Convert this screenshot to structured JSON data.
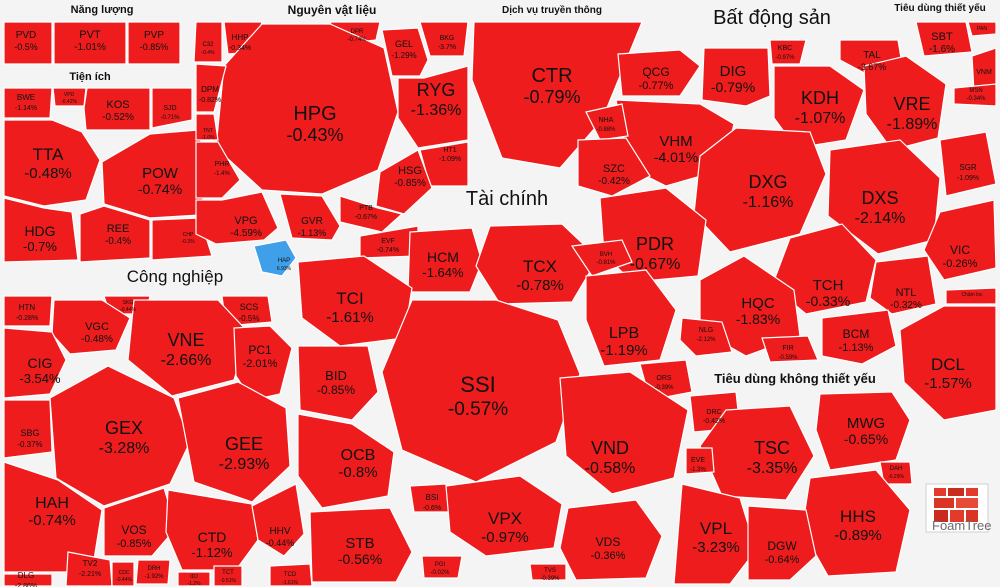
{
  "chart_data": {
    "type": "heatmap",
    "colors": {
      "down": "#ee1c1c",
      "up": "#3f9fe8",
      "flat": "#d8d8d8",
      "gap": "#f4f4f4"
    },
    "groups": [
      {
        "name": "Năng lượng",
        "stocks": [
          {
            "ticker": "PVD",
            "change": "-0.5%"
          },
          {
            "ticker": "PVT",
            "change": "-1.01%"
          },
          {
            "ticker": "PVP",
            "change": "-0.85%"
          }
        ]
      },
      {
        "name": "Tiện ích",
        "stocks": [
          {
            "ticker": "BWE",
            "change": "-1.14%"
          },
          {
            "ticker": "VPD",
            "change": "-0.42%"
          },
          {
            "ticker": "KOS",
            "change": "-0.52%"
          },
          {
            "ticker": "SJD",
            "change": "-0.71%"
          },
          {
            "ticker": "TTA",
            "change": "-0.48%"
          },
          {
            "ticker": "POW",
            "change": "-0.74%"
          },
          {
            "ticker": "HDG",
            "change": "-0.7%"
          },
          {
            "ticker": "REE",
            "change": "-0.4%"
          },
          {
            "ticker": "CHP",
            "change": "-0.3%"
          }
        ]
      },
      {
        "name": "Nguyên vật liệu",
        "stocks": [
          {
            "ticker": "C32",
            "change": "-0.4%"
          },
          {
            "ticker": "HHP",
            "change": "-0.34%"
          },
          {
            "ticker": "DPR",
            "change": "-0.74%"
          },
          {
            "ticker": "BKG",
            "change": "-3.7%"
          },
          {
            "ticker": "HPG",
            "change": "-0.43%"
          },
          {
            "ticker": "GEL",
            "change": "-1.29%"
          },
          {
            "ticker": "RYG",
            "change": "-1.36%"
          },
          {
            "ticker": "DPM",
            "change": "-0.82%"
          },
          {
            "ticker": "TNT",
            "change": "-1.0%"
          },
          {
            "ticker": "HT1",
            "change": "-1.09%"
          },
          {
            "ticker": "HSG",
            "change": "-0.85%"
          },
          {
            "ticker": "PHR",
            "change": "-1.4%"
          },
          {
            "ticker": "PTB",
            "change": "-0.67%"
          },
          {
            "ticker": "VPG",
            "change": "-4.59%"
          },
          {
            "ticker": "GVR",
            "change": "-1.13%"
          },
          {
            "ticker": "HAP",
            "change": "6.93%"
          }
        ]
      },
      {
        "name": "Dịch vụ truyền thông",
        "stocks": [
          {
            "ticker": "CTR",
            "change": "-0.79%"
          }
        ]
      },
      {
        "name": "Bất động sản",
        "stocks": [
          {
            "ticker": "QCG",
            "change": "-0.77%"
          },
          {
            "ticker": "DIG",
            "change": "-0.79%"
          },
          {
            "ticker": "KBC",
            "change": "-0.97%"
          },
          {
            "ticker": "TAL",
            "change": "-3.67%"
          },
          {
            "ticker": "KDH",
            "change": "-1.07%"
          },
          {
            "ticker": "VRE",
            "change": "-1.89%"
          },
          {
            "ticker": "VHM",
            "change": "-4.01%"
          },
          {
            "ticker": "NHA",
            "change": "-0.88%"
          },
          {
            "ticker": "SZC",
            "change": "-0.42%"
          },
          {
            "ticker": "DXG",
            "change": "-1.16%"
          },
          {
            "ticker": "DXS",
            "change": "-2.14%"
          },
          {
            "ticker": "PDR",
            "change": "-0.67%"
          },
          {
            "ticker": "TCH",
            "change": "-0.33%"
          },
          {
            "ticker": "HQC",
            "change": "-1.83%"
          },
          {
            "ticker": "NTL",
            "change": "-0.32%"
          },
          {
            "ticker": "NLG",
            "change": "-2.12%"
          },
          {
            "ticker": "FIR",
            "change": "-0.59%"
          },
          {
            "ticker": "BCM",
            "change": "-1.13%"
          },
          {
            "ticker": "SGR",
            "change": "-1.09%"
          },
          {
            "ticker": "VIC",
            "change": "-0.26%"
          }
        ]
      },
      {
        "name": "Tiêu dùng thiết yếu",
        "stocks": [
          {
            "ticker": "SBT",
            "change": "-1.6%"
          },
          {
            "ticker": "PAN",
            "change": ""
          },
          {
            "ticker": "VNM",
            "change": ""
          },
          {
            "ticker": "MSN",
            "change": "-0.34%"
          },
          {
            "ticker": "DCL",
            "change": "-1.57%"
          },
          {
            "ticker": "Chậm lọc",
            "change": ""
          }
        ]
      },
      {
        "name": "Tài chính",
        "stocks": [
          {
            "ticker": "EVF",
            "change": "-0.74%"
          },
          {
            "ticker": "HCM",
            "change": "-1.64%"
          },
          {
            "ticker": "TCX",
            "change": "-0.78%"
          },
          {
            "ticker": "BVH",
            "change": "-0.81%"
          },
          {
            "ticker": "TCI",
            "change": "-1.61%"
          },
          {
            "ticker": "LPB",
            "change": "-1.19%"
          },
          {
            "ticker": "SSI",
            "change": "-0.57%"
          },
          {
            "ticker": "BID",
            "change": "-0.85%"
          },
          {
            "ticker": "ORS",
            "change": "-0.39%"
          },
          {
            "ticker": "OCB",
            "change": "-0.8%"
          },
          {
            "ticker": "VND",
            "change": "-0.58%"
          },
          {
            "ticker": "BSI",
            "change": "-0.6%"
          },
          {
            "ticker": "VPX",
            "change": "-0.97%"
          },
          {
            "ticker": "STB",
            "change": "-0.56%"
          },
          {
            "ticker": "VDS",
            "change": "-0.36%"
          },
          {
            "ticker": "PGI",
            "change": "-0.02%"
          },
          {
            "ticker": "TVS",
            "change": "-0.39%"
          }
        ]
      },
      {
        "name": "Công nghiệp",
        "stocks": [
          {
            "ticker": "HTN",
            "change": "-0.28%"
          },
          {
            "ticker": "SKG",
            "change": "-0.44%"
          },
          {
            "ticker": "SCS",
            "change": "-0.5%"
          },
          {
            "ticker": "VGC",
            "change": "-0.48%"
          },
          {
            "ticker": "VNE",
            "change": "-2.66%"
          },
          {
            "ticker": "PC1",
            "change": "-2.01%"
          },
          {
            "ticker": "CIG",
            "change": "-3.54%"
          },
          {
            "ticker": "GEX",
            "change": "-3.28%"
          },
          {
            "ticker": "GEE",
            "change": "-2.93%"
          },
          {
            "ticker": "SBG",
            "change": "-0.37%"
          },
          {
            "ticker": "HAH",
            "change": "-0.74%"
          },
          {
            "ticker": "VOS",
            "change": "-0.85%"
          },
          {
            "ticker": "CTD",
            "change": "-1.12%"
          },
          {
            "ticker": "HHV",
            "change": "-0.44%"
          },
          {
            "ticker": "DLG",
            "change": "-2.86%"
          },
          {
            "ticker": "TV2",
            "change": "-2.21%"
          },
          {
            "ticker": "DRH",
            "change": "-1.92%"
          },
          {
            "ticker": "TCT",
            "change": "-0.51%"
          },
          {
            "ticker": "TCD",
            "change": "-1.61%"
          },
          {
            "ticker": "CDC",
            "change": "-0.44%"
          },
          {
            "ticker": "IDJ",
            "change": "-1.2%"
          }
        ]
      },
      {
        "name": "Tiêu dùng không thiết yếu",
        "stocks": [
          {
            "ticker": "DRC",
            "change": "-0.42%"
          },
          {
            "ticker": "MWG",
            "change": "-0.65%"
          },
          {
            "ticker": "TSC",
            "change": "-3.35%"
          },
          {
            "ticker": "EVE",
            "change": "-1.3%"
          },
          {
            "ticker": "DAH",
            "change": "-0.29%"
          },
          {
            "ticker": "VPL",
            "change": "-3.23%"
          },
          {
            "ticker": "HHS",
            "change": "-0.89%"
          },
          {
            "ticker": "DGW",
            "change": "-0.64%"
          }
        ]
      }
    ]
  },
  "logo": {
    "label": "FoamTree"
  }
}
